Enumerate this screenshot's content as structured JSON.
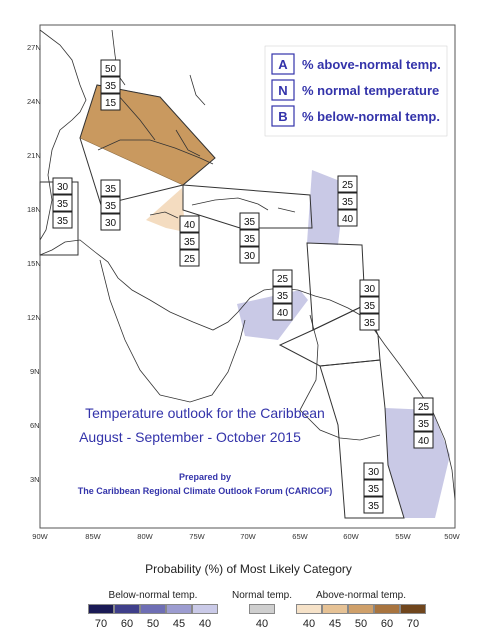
{
  "legend_box": {
    "rows": [
      {
        "code": "A",
        "text": "% above-normal temp."
      },
      {
        "code": "N",
        "text": "% normal temperature"
      },
      {
        "code": "B",
        "text": "% below-normal temp."
      }
    ]
  },
  "title": {
    "line1": "Temperature outlook for the Caribbean",
    "line2": "August - September - October 2015",
    "prepared_by": "Prepared by",
    "forum": "The Caribbean Regional Climate Outlook Forum (CARICOF)"
  },
  "lat_labels": [
    "27N",
    "24N",
    "21N",
    "18N",
    "15N",
    "12N",
    "9N",
    "6N",
    "3N"
  ],
  "lon_labels": [
    "90W",
    "85W",
    "80W",
    "75W",
    "70W",
    "65W",
    "60W",
    "55W",
    "50W"
  ],
  "probability_boxes": [
    {
      "region": "bahamas",
      "values": [
        "50",
        "35",
        "15"
      ]
    },
    {
      "region": "belize",
      "values": [
        "30",
        "35",
        "35"
      ]
    },
    {
      "region": "cayman",
      "values": [
        "35",
        "35",
        "30"
      ]
    },
    {
      "region": "jamaica",
      "values": [
        "40",
        "35",
        "25"
      ]
    },
    {
      "region": "hispaniola-puerto-rico",
      "values": [
        "35",
        "35",
        "30"
      ]
    },
    {
      "region": "northern-leewards",
      "values": [
        "25",
        "35",
        "40"
      ]
    },
    {
      "region": "abc-islands",
      "values": [
        "25",
        "35",
        "40"
      ]
    },
    {
      "region": "windwards",
      "values": [
        "30",
        "35",
        "35"
      ]
    },
    {
      "region": "guianas",
      "values": [
        "25",
        "35",
        "40"
      ]
    },
    {
      "region": "suriname-guyana",
      "values": [
        "30",
        "35",
        "35"
      ]
    }
  ],
  "legend": {
    "title": "Probability (%) of Most Likely Category",
    "below": {
      "label": "Below-normal temp.",
      "values": [
        "70",
        "60",
        "50",
        "45",
        "40"
      ],
      "colors": [
        "#1a1a55",
        "#3f3f8a",
        "#6e6eb4",
        "#9c9cd0",
        "#cacae8"
      ]
    },
    "normal": {
      "label": "Normal temp.",
      "values": [
        "40"
      ],
      "colors": [
        "#cfcfcf"
      ]
    },
    "above": {
      "label": "Above-normal temp.",
      "values": [
        "40",
        "45",
        "50",
        "60",
        "70"
      ],
      "colors": [
        "#f6e2c8",
        "#e6c295",
        "#cfa06a",
        "#a8743f",
        "#70461d"
      ]
    }
  },
  "colors": {
    "above_50": "#c9995f",
    "above_40": "#f4dcc0",
    "below_40": "#c9c9e6",
    "title_blue": "#3333aa"
  }
}
